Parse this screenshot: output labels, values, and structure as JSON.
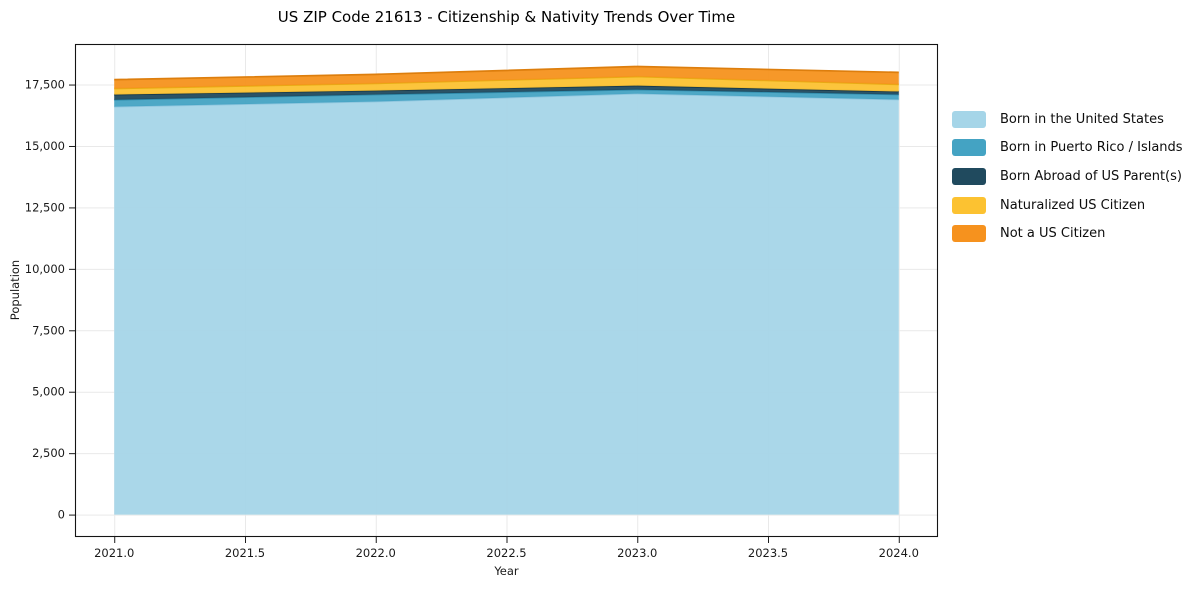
{
  "chart_data": {
    "type": "area",
    "stacked": true,
    "title": "US ZIP Code 21613 - Citizenship & Nativity Trends Over Time",
    "xlabel": "Year",
    "ylabel": "Population",
    "x": [
      2021,
      2022,
      2023,
      2024
    ],
    "series": [
      {
        "name": "Born in the United States",
        "color": "#A5D5E8",
        "edge": "#8FC6DE",
        "values": [
          16600,
          16810,
          17130,
          16890
        ]
      },
      {
        "name": "Born in Puerto Rico / Islands",
        "color": "#44A3C3",
        "edge": "#2F8BAB",
        "values": [
          280,
          285,
          165,
          205
        ]
      },
      {
        "name": "Born Abroad of US Parent(s)",
        "color": "#204A5E",
        "edge": "#16384A",
        "values": [
          210,
          160,
          160,
          120
        ]
      },
      {
        "name": "Naturalized US Citizen",
        "color": "#FCC231",
        "edge": "#E7AC14",
        "values": [
          250,
          290,
          370,
          290
        ]
      },
      {
        "name": "Not a US Citizen",
        "color": "#F6921E",
        "edge": "#DD7E0D",
        "values": [
          360,
          370,
          410,
          490
        ]
      }
    ],
    "xticks": [
      2021.0,
      2021.5,
      2022.0,
      2022.5,
      2023.0,
      2023.5,
      2024.0
    ],
    "xtick_labels": [
      "2021.0",
      "2021.5",
      "2022.0",
      "2022.5",
      "2023.0",
      "2023.5",
      "2024.0"
    ],
    "yticks": [
      0,
      2500,
      5000,
      7500,
      10000,
      12500,
      15000,
      17500
    ],
    "ytick_labels": [
      "0",
      "2,500",
      "5,000",
      "7,500",
      "10,000",
      "12,500",
      "15,000",
      "17,500"
    ],
    "xlim": [
      2020.85,
      2024.15
    ],
    "ylim": [
      -912,
      19150
    ],
    "grid": true,
    "legend_position": "outside-right"
  },
  "styles": {
    "grid_color": "#e9e9e9",
    "spine_color": "#141414",
    "tick_color": "#1a1a1a",
    "background": "#ffffff",
    "fill_opacity": 0.95
  }
}
